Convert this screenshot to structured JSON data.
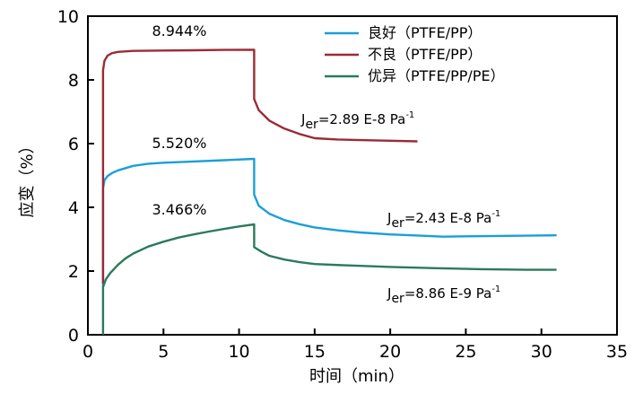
{
  "chart_data": {
    "type": "line",
    "xlabel": "时间（min）",
    "ylabel": "应变（%）",
    "xlim": [
      0,
      35
    ],
    "ylim": [
      0,
      10
    ],
    "x_ticks": [
      "0",
      "5",
      "10",
      "15",
      "20",
      "25",
      "30",
      "35"
    ],
    "y_ticks": [
      "0",
      "2",
      "4",
      "6",
      "8",
      "10"
    ],
    "grid": false,
    "legend_position": "top-right",
    "series": [
      {
        "name": "良好（PTFE/PP）",
        "color": "#1a9fd8",
        "peak_label": "5.520%",
        "compliance_prefix": "J",
        "compliance_sub": "er",
        "compliance_value": "=2.43 E-8 Pa",
        "compliance_sup": "-1",
        "x": [
          1.0,
          1.0,
          1.1,
          1.3,
          1.6,
          2.0,
          3.0,
          4.0,
          5.0,
          7.0,
          9.0,
          11.0,
          11.0,
          11.3,
          12.0,
          13.0,
          14.0,
          15.0,
          16.5,
          18.0,
          20.0,
          22.0,
          23.5,
          25.0,
          27.0,
          29.0,
          31.0
        ],
        "y": [
          1.5,
          4.6,
          4.85,
          4.98,
          5.08,
          5.16,
          5.3,
          5.37,
          5.4,
          5.44,
          5.48,
          5.52,
          4.4,
          4.05,
          3.8,
          3.6,
          3.47,
          3.37,
          3.28,
          3.21,
          3.15,
          3.11,
          3.08,
          3.09,
          3.1,
          3.11,
          3.12
        ]
      },
      {
        "name": "不良（PTFE/PP）",
        "color": "#9b2b35",
        "peak_label": "8.944%",
        "compliance_prefix": "J",
        "compliance_sub": "er",
        "compliance_value": "=2.89 E-8 Pa",
        "compliance_sup": "-1",
        "x": [
          1.0,
          1.0,
          1.1,
          1.3,
          1.6,
          2.0,
          3.0,
          5.0,
          7.0,
          9.0,
          11.0,
          11.0,
          11.3,
          12.0,
          13.0,
          14.0,
          15.0,
          16.5,
          18.0,
          20.0,
          21.8
        ],
        "y": [
          1.6,
          8.3,
          8.6,
          8.76,
          8.84,
          8.88,
          8.91,
          8.92,
          8.93,
          8.94,
          8.944,
          7.4,
          7.05,
          6.72,
          6.47,
          6.3,
          6.17,
          6.13,
          6.11,
          6.09,
          6.07
        ]
      },
      {
        "name": "优异（PTFE/PP/PE）",
        "color": "#2b7a5c",
        "peak_label": "3.466%",
        "compliance_prefix": "J",
        "compliance_sub": "er",
        "compliance_value": "=8.86 E-9 Pa",
        "compliance_sup": "-1",
        "x": [
          1.0,
          1.0,
          1.2,
          1.5,
          2.0,
          2.5,
          3.0,
          4.0,
          5.0,
          6.0,
          7.0,
          8.0,
          9.0,
          10.0,
          11.0,
          11.0,
          11.5,
          12.0,
          13.0,
          14.0,
          15.0,
          17.0,
          20.0,
          23.0,
          26.0,
          29.0,
          31.0
        ],
        "y": [
          0.0,
          1.5,
          1.75,
          1.95,
          2.2,
          2.4,
          2.55,
          2.77,
          2.92,
          3.05,
          3.15,
          3.24,
          3.32,
          3.4,
          3.466,
          2.75,
          2.6,
          2.48,
          2.36,
          2.28,
          2.22,
          2.18,
          2.13,
          2.09,
          2.06,
          2.04,
          2.04
        ]
      }
    ]
  }
}
